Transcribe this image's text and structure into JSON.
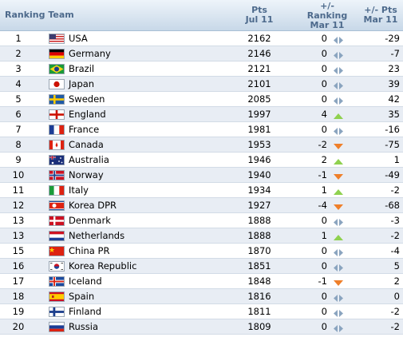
{
  "header": {
    "ranking_team": "Ranking Team",
    "pts_line1": "Pts",
    "pts_line2": "Jul 11",
    "move_line1": "+/-",
    "move_line2": "Ranking",
    "move_line3": "Mar 11",
    "diff_line1": "+/- Pts",
    "diff_line2": "Mar 11"
  },
  "colors": {
    "up": "#8fd14f",
    "down": "#ef7f2a",
    "same": "#8aa4bf"
  },
  "rows": [
    {
      "rank": "1",
      "team": "USA",
      "pts": "2162",
      "move": "0",
      "trend": "same",
      "diff": "-29",
      "flag": "usa"
    },
    {
      "rank": "2",
      "team": "Germany",
      "pts": "2146",
      "move": "0",
      "trend": "same",
      "diff": "-7",
      "flag": "germany"
    },
    {
      "rank": "3",
      "team": "Brazil",
      "pts": "2121",
      "move": "0",
      "trend": "same",
      "diff": "23",
      "flag": "brazil"
    },
    {
      "rank": "4",
      "team": "Japan",
      "pts": "2101",
      "move": "0",
      "trend": "same",
      "diff": "39",
      "flag": "japan"
    },
    {
      "rank": "5",
      "team": "Sweden",
      "pts": "2085",
      "move": "0",
      "trend": "same",
      "diff": "42",
      "flag": "sweden"
    },
    {
      "rank": "6",
      "team": "England",
      "pts": "1997",
      "move": "4",
      "trend": "up",
      "diff": "35",
      "flag": "england"
    },
    {
      "rank": "7",
      "team": "France",
      "pts": "1981",
      "move": "0",
      "trend": "same",
      "diff": "-16",
      "flag": "france"
    },
    {
      "rank": "8",
      "team": "Canada",
      "pts": "1953",
      "move": "-2",
      "trend": "down",
      "diff": "-75",
      "flag": "canada"
    },
    {
      "rank": "9",
      "team": "Australia",
      "pts": "1946",
      "move": "2",
      "trend": "up",
      "diff": "1",
      "flag": "australia"
    },
    {
      "rank": "10",
      "team": "Norway",
      "pts": "1940",
      "move": "-1",
      "trend": "down",
      "diff": "-49",
      "flag": "norway"
    },
    {
      "rank": "11",
      "team": "Italy",
      "pts": "1934",
      "move": "1",
      "trend": "up",
      "diff": "-2",
      "flag": "italy"
    },
    {
      "rank": "12",
      "team": "Korea DPR",
      "pts": "1927",
      "move": "-4",
      "trend": "down",
      "diff": "-68",
      "flag": "koreadpr"
    },
    {
      "rank": "13",
      "team": "Denmark",
      "pts": "1888",
      "move": "0",
      "trend": "same",
      "diff": "-3",
      "flag": "denmark"
    },
    {
      "rank": "13",
      "team": "Netherlands",
      "pts": "1888",
      "move": "1",
      "trend": "up",
      "diff": "-2",
      "flag": "netherlands"
    },
    {
      "rank": "15",
      "team": "China PR",
      "pts": "1870",
      "move": "0",
      "trend": "same",
      "diff": "-4",
      "flag": "china"
    },
    {
      "rank": "16",
      "team": "Korea Republic",
      "pts": "1851",
      "move": "0",
      "trend": "same",
      "diff": "5",
      "flag": "korearep"
    },
    {
      "rank": "17",
      "team": "Iceland",
      "pts": "1848",
      "move": "-1",
      "trend": "down",
      "diff": "2",
      "flag": "iceland"
    },
    {
      "rank": "18",
      "team": "Spain",
      "pts": "1816",
      "move": "0",
      "trend": "same",
      "diff": "0",
      "flag": "spain"
    },
    {
      "rank": "19",
      "team": "Finland",
      "pts": "1811",
      "move": "0",
      "trend": "same",
      "diff": "-2",
      "flag": "finland"
    },
    {
      "rank": "20",
      "team": "Russia",
      "pts": "1809",
      "move": "0",
      "trend": "same",
      "diff": "-2",
      "flag": "russia"
    }
  ]
}
